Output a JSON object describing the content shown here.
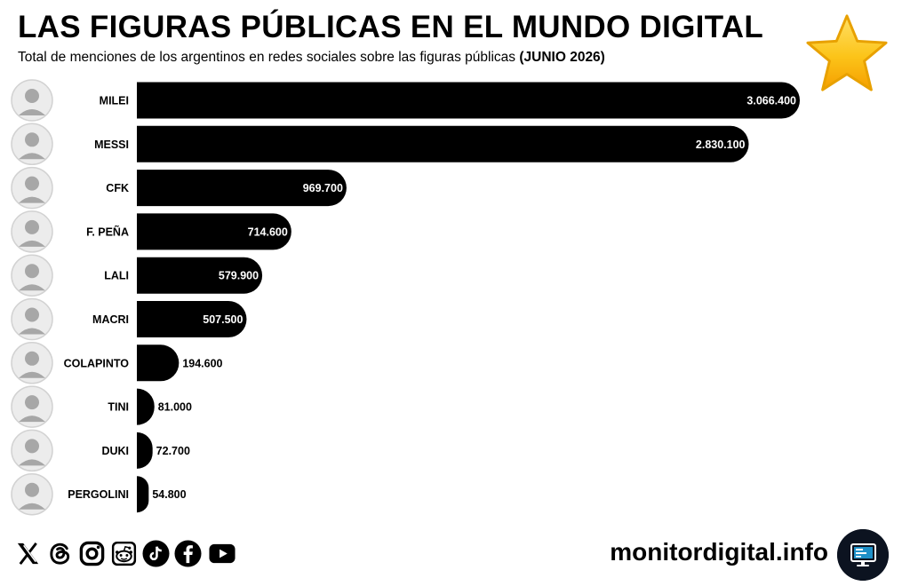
{
  "header": {
    "title": "LAS FIGURAS PÚBLICAS EN EL MUNDO DIGITAL",
    "subtitle": "Total de menciones de los argentinos en redes sociales sobre las figuras públicas",
    "subtitle_date": "(JUNIO 2026)"
  },
  "chart_data": {
    "type": "bar",
    "orientation": "horizontal",
    "categories": [
      "MILEI",
      "MESSI",
      "CFK",
      "F. PEÑA",
      "LALI",
      "MACRI",
      "COLAPINTO",
      "TINI",
      "DUKI",
      "PERGOLINI"
    ],
    "values": [
      3066400,
      2830100,
      969700,
      714600,
      579900,
      507500,
      194600,
      81000,
      72700,
      54800
    ],
    "value_labels": [
      "3.066.400",
      "2.830.100",
      "969.700",
      "714.600",
      "579.900",
      "507.500",
      "194.600",
      "81.000",
      "72.700",
      "54.800"
    ],
    "bar_color": "#000000",
    "value_label_color_inside": "#ffffff",
    "value_label_color_outside": "#000000",
    "grid": false,
    "legend": false
  },
  "footer": {
    "social_icons": [
      "x-icon",
      "threads-icon",
      "instagram-icon",
      "reddit-icon",
      "tiktok-icon",
      "facebook-icon",
      "youtube-icon"
    ],
    "brand": "monitordigital.info",
    "brand_logo_icon": "monitor-icon"
  },
  "colors": {
    "background": "#ffffff",
    "bars": "#000000",
    "star": "#f7b500",
    "brand_logo": "#0c1320"
  }
}
